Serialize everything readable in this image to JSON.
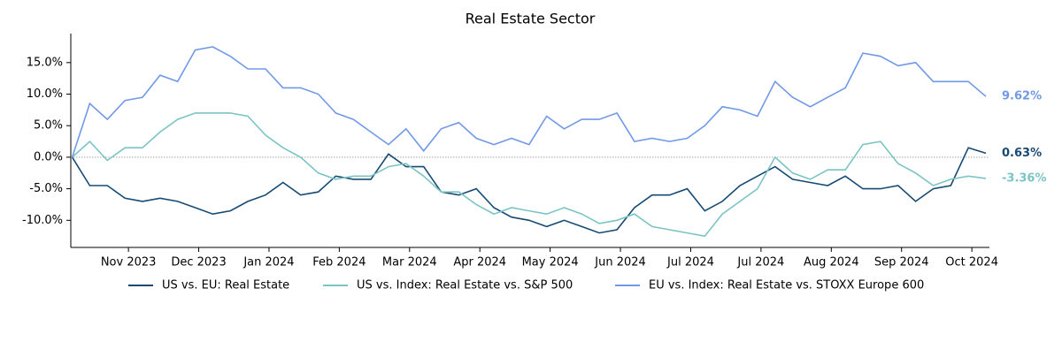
{
  "chart_data": {
    "type": "line",
    "title": "Real Estate Sector",
    "x": [
      -0.8,
      -0.55,
      -0.3,
      -0.05,
      0.2,
      0.45,
      0.7,
      0.95,
      1.2,
      1.45,
      1.7,
      1.95,
      2.2,
      2.45,
      2.7,
      2.95,
      3.2,
      3.45,
      3.7,
      3.95,
      4.2,
      4.45,
      4.7,
      4.95,
      5.2,
      5.45,
      5.7,
      5.95,
      6.2,
      6.45,
      6.7,
      6.95,
      7.2,
      7.45,
      7.7,
      7.95,
      8.2,
      8.45,
      8.7,
      8.95,
      9.2,
      9.45,
      9.7,
      9.95,
      10.2,
      10.45,
      10.7,
      10.95,
      11.2,
      11.45,
      11.7,
      11.95,
      12.2
    ],
    "series": [
      {
        "name": "US vs. EU: Real Estate",
        "color": "#174a73",
        "end_label": "0.63%",
        "values": [
          0,
          -4.5,
          -4.5,
          -6.5,
          -7,
          -6.5,
          -7,
          -8,
          -9,
          -8.5,
          -7,
          -6,
          -4,
          -6,
          -5.5,
          -3,
          -3.5,
          -3.5,
          0.5,
          -1.5,
          -1.5,
          -5.5,
          -6,
          -5,
          -8,
          -9.5,
          -10,
          -11,
          -10,
          -11,
          -12,
          -11.5,
          -8,
          -6,
          -6,
          -5,
          -8.5,
          -7,
          -4.5,
          -3,
          -1.5,
          -3.5,
          -4,
          -4.5,
          -3,
          -5,
          -5,
          -4.5,
          -7,
          -5,
          -4.5,
          1.5,
          0.63
        ]
      },
      {
        "name": "US vs. Index: Real Estate vs. S&P 500",
        "color": "#7cc4c4",
        "end_label": "-3.36%",
        "values": [
          0,
          2.5,
          -0.5,
          1.5,
          1.5,
          4,
          6,
          7,
          7,
          7,
          6.5,
          3.5,
          1.5,
          0,
          -2.5,
          -3.5,
          -3,
          -3,
          -1.5,
          -1,
          -3,
          -5.5,
          -5.5,
          -7.5,
          -9,
          -8,
          -8.5,
          -9,
          -8,
          -9,
          -10.5,
          -10,
          -9,
          -11,
          -11.5,
          -12,
          -12.5,
          -9,
          -7,
          -5,
          0,
          -2.5,
          -3.5,
          -2,
          -2,
          2,
          2.5,
          -1,
          -2.5,
          -4.5,
          -3.5,
          -3,
          -3.36
        ]
      },
      {
        "name": "EU vs. Index: Real Estate vs. STOXX Europe 600",
        "color": "#7199e6",
        "end_label": "9.62%",
        "values": [
          0,
          8.5,
          6,
          9,
          9.5,
          13,
          12,
          17,
          17.5,
          16,
          14,
          14,
          11,
          11,
          10,
          7,
          6,
          4,
          2,
          4.5,
          1,
          4.5,
          5.5,
          3,
          2,
          3,
          2,
          6.5,
          4.5,
          6,
          6,
          7,
          2.5,
          3,
          2.5,
          3,
          5,
          8,
          7.5,
          6.5,
          12,
          9.5,
          8,
          9.5,
          11,
          16.5,
          16,
          14.5,
          15,
          12,
          12,
          12,
          9.62
        ]
      }
    ],
    "xlim": [
      -0.82,
      12.25
    ],
    "xticks": [
      {
        "value": 0,
        "label": "Nov 2023"
      },
      {
        "value": 1,
        "label": "Dec 2023"
      },
      {
        "value": 2,
        "label": "Jan 2024"
      },
      {
        "value": 3,
        "label": "Feb 2024"
      },
      {
        "value": 4,
        "label": "Mar 2024"
      },
      {
        "value": 5,
        "label": "Apr 2024"
      },
      {
        "value": 6,
        "label": "May 2024"
      },
      {
        "value": 7,
        "label": "Jun 2024"
      },
      {
        "value": 8,
        "label": "Jul 2024"
      },
      {
        "value": 9,
        "label": "Jul 2024"
      },
      {
        "value": 10,
        "label": "Aug 2024"
      },
      {
        "value": 11,
        "label": "Sep 2024"
      },
      {
        "value": 12,
        "label": "Oct 2024"
      }
    ],
    "ylim": [
      -14.3,
      19.6
    ],
    "yticks": [
      {
        "value": -10,
        "label": "-10.0%"
      },
      {
        "value": -5,
        "label": "-5.0%"
      },
      {
        "value": 0,
        "label": "0.0%"
      },
      {
        "value": 5,
        "label": "5.0%"
      },
      {
        "value": 10,
        "label": "10.0%"
      },
      {
        "value": 15,
        "label": "15.0%"
      }
    ],
    "zero_line": true
  }
}
